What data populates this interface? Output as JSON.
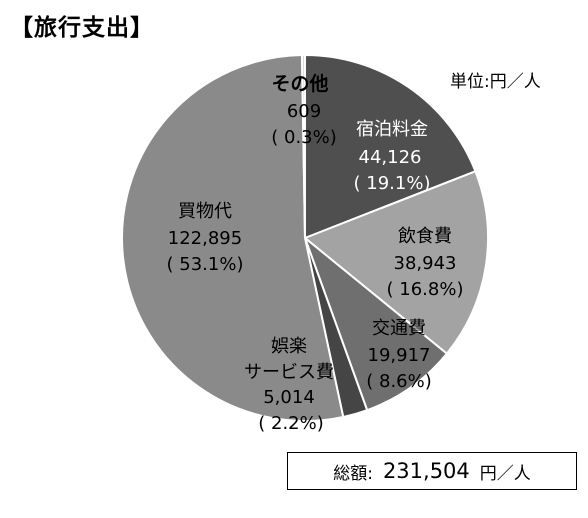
{
  "title": "【旅行支出】",
  "unit": "単位:円／人",
  "total": {
    "label": "総額:",
    "value": "231,504",
    "unit": "円／人"
  },
  "chart_data": {
    "type": "pie",
    "title": "【旅行支出】",
    "slices": [
      {
        "name": "宿泊料金",
        "value": 44126,
        "value_label": "44,126",
        "percent_label": "( 19.1%)",
        "color": "#4f4f4f"
      },
      {
        "name": "飲食費",
        "value": 38943,
        "value_label": "38,943",
        "percent_label": "( 16.8%)",
        "color": "#a3a3a3"
      },
      {
        "name": "交通費",
        "value": 19917,
        "value_label": "19,917",
        "percent_label": "( 8.6%)",
        "color": "#6f6f6f"
      },
      {
        "name": "娯楽サービス費",
        "value": 5014,
        "value_label": "5,014",
        "percent_label": "( 2.2%)",
        "color": "#454545"
      },
      {
        "name": "買物代",
        "value": 122895,
        "value_label": "122,895",
        "percent_label": "( 53.1%)",
        "color": "#8a8a8a"
      },
      {
        "name": "その他",
        "value": 609,
        "value_label": "609",
        "percent_label": "( 0.3%)",
        "color": "#d4d4d4"
      }
    ]
  }
}
